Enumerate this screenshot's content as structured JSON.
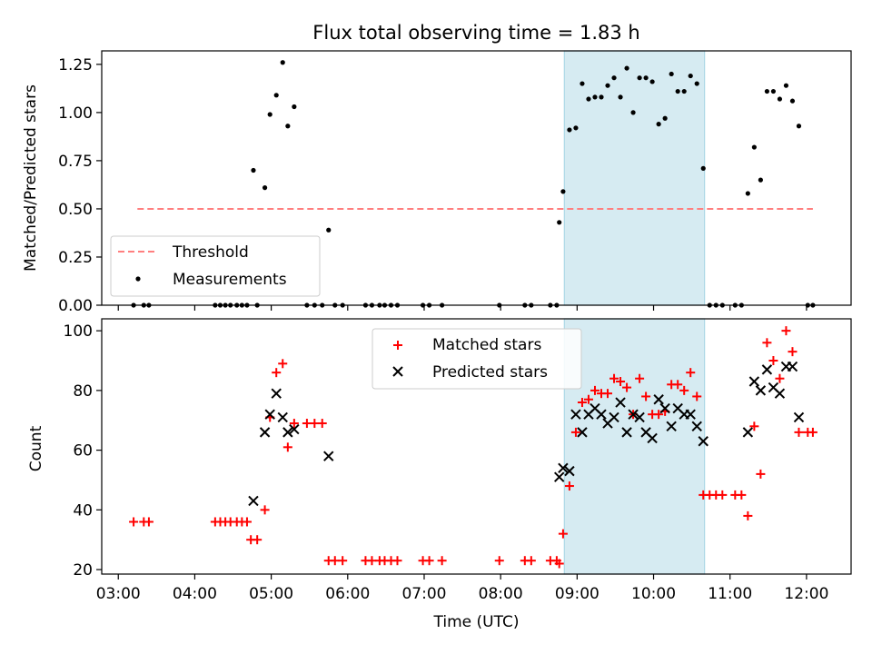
{
  "chart_data": [
    {
      "type": "scatter",
      "title": "Flux total observing time = 1.83 h",
      "xlabel": "",
      "ylabel": "Matched/Predicted stars",
      "xlim": [
        "02:47",
        "12:35"
      ],
      "ylim": [
        0,
        1.32
      ],
      "yticks": [
        0.0,
        0.25,
        0.5,
        0.75,
        1.0,
        1.25
      ],
      "ytick_labels": [
        "0.00",
        "0.25",
        "0.50",
        "0.75",
        "1.00",
        "1.25"
      ],
      "highlight_span": [
        "08:50",
        "10:40"
      ],
      "legend": {
        "placement": "lower-left",
        "entries": [
          "Threshold",
          "Measurements"
        ]
      },
      "threshold": {
        "name": "Threshold",
        "value": 0.5,
        "x_range": [
          "03:15",
          "12:05"
        ],
        "color": "#ff7f7f",
        "style": "dashed"
      },
      "series": [
        {
          "name": "Measurements",
          "color": "#000000",
          "points": [
            [
              "03:12",
              0
            ],
            [
              "03:20",
              0
            ],
            [
              "03:24",
              0
            ],
            [
              "04:16",
              0
            ],
            [
              "04:20",
              0
            ],
            [
              "04:24",
              0
            ],
            [
              "04:28",
              0
            ],
            [
              "04:33",
              0
            ],
            [
              "04:37",
              0
            ],
            [
              "04:41",
              0
            ],
            [
              "04:46",
              0.7
            ],
            [
              "04:49",
              0
            ],
            [
              "04:55",
              0.61
            ],
            [
              "04:59",
              0.99
            ],
            [
              "05:04",
              1.09
            ],
            [
              "05:09",
              1.26
            ],
            [
              "05:13",
              0.93
            ],
            [
              "05:18",
              1.03
            ],
            [
              "05:28",
              0
            ],
            [
              "05:34",
              0
            ],
            [
              "05:40",
              0
            ],
            [
              "05:45",
              0.39
            ],
            [
              "05:50",
              0
            ],
            [
              "05:56",
              0
            ],
            [
              "06:14",
              0
            ],
            [
              "06:19",
              0
            ],
            [
              "06:25",
              0
            ],
            [
              "06:29",
              0
            ],
            [
              "06:34",
              0
            ],
            [
              "06:39",
              0
            ],
            [
              "06:59",
              0
            ],
            [
              "07:04",
              0
            ],
            [
              "07:14",
              0
            ],
            [
              "07:59",
              0
            ],
            [
              "08:19",
              0
            ],
            [
              "08:24",
              0
            ],
            [
              "08:39",
              0
            ],
            [
              "08:44",
              0
            ],
            [
              "08:46",
              0.43
            ],
            [
              "08:49",
              0.59
            ],
            [
              "08:54",
              0.91
            ],
            [
              "08:59",
              0.92
            ],
            [
              "09:04",
              1.15
            ],
            [
              "09:09",
              1.07
            ],
            [
              "09:14",
              1.08
            ],
            [
              "09:19",
              1.08
            ],
            [
              "09:24",
              1.14
            ],
            [
              "09:29",
              1.18
            ],
            [
              "09:34",
              1.08
            ],
            [
              "09:39",
              1.23
            ],
            [
              "09:44",
              1.0
            ],
            [
              "09:49",
              1.18
            ],
            [
              "09:54",
              1.18
            ],
            [
              "09:59",
              1.16
            ],
            [
              "10:04",
              0.94
            ],
            [
              "10:09",
              0.97
            ],
            [
              "10:14",
              1.2
            ],
            [
              "10:19",
              1.11
            ],
            [
              "10:24",
              1.11
            ],
            [
              "10:29",
              1.19
            ],
            [
              "10:34",
              1.15
            ],
            [
              "10:39",
              0.71
            ],
            [
              "10:44",
              0
            ],
            [
              "10:49",
              0
            ],
            [
              "10:54",
              0
            ],
            [
              "11:04",
              0
            ],
            [
              "11:09",
              0
            ],
            [
              "11:14",
              0.58
            ],
            [
              "11:19",
              0.82
            ],
            [
              "11:24",
              0.65
            ],
            [
              "11:29",
              1.11
            ],
            [
              "11:34",
              1.11
            ],
            [
              "11:39",
              1.07
            ],
            [
              "11:44",
              1.14
            ],
            [
              "11:49",
              1.06
            ],
            [
              "11:54",
              0.93
            ],
            [
              "12:01",
              0
            ],
            [
              "12:05",
              0
            ]
          ]
        }
      ]
    },
    {
      "type": "scatter",
      "title": "",
      "xlabel": "Time (UTC)",
      "ylabel": "Count",
      "xlim": [
        "02:47",
        "12:35"
      ],
      "ylim": [
        18.5,
        104
      ],
      "yticks": [
        20,
        40,
        60,
        80,
        100
      ],
      "xticks": [
        "03:00",
        "04:00",
        "05:00",
        "06:00",
        "07:00",
        "08:00",
        "09:00",
        "10:00",
        "11:00",
        "12:00"
      ],
      "highlight_span": [
        "08:50",
        "10:40"
      ],
      "legend": {
        "placement": "top-center",
        "entries": [
          "Matched stars",
          "Predicted stars"
        ]
      },
      "series": [
        {
          "name": "Matched stars",
          "marker": "plus",
          "color": "#ff0000",
          "points": [
            [
              "03:12",
              36
            ],
            [
              "03:20",
              36
            ],
            [
              "03:24",
              36
            ],
            [
              "04:16",
              36
            ],
            [
              "04:20",
              36
            ],
            [
              "04:24",
              36
            ],
            [
              "04:28",
              36
            ],
            [
              "04:33",
              36
            ],
            [
              "04:37",
              36
            ],
            [
              "04:41",
              36
            ],
            [
              "04:44",
              30
            ],
            [
              "04:49",
              30
            ],
            [
              "04:55",
              40
            ],
            [
              "04:59",
              71
            ],
            [
              "05:04",
              86
            ],
            [
              "05:09",
              89
            ],
            [
              "05:13",
              61
            ],
            [
              "05:18",
              69
            ],
            [
              "05:28",
              69
            ],
            [
              "05:34",
              69
            ],
            [
              "05:40",
              69
            ],
            [
              "05:45",
              23
            ],
            [
              "05:50",
              23
            ],
            [
              "05:56",
              23
            ],
            [
              "06:14",
              23
            ],
            [
              "06:19",
              23
            ],
            [
              "06:25",
              23
            ],
            [
              "06:29",
              23
            ],
            [
              "06:34",
              23
            ],
            [
              "06:39",
              23
            ],
            [
              "06:59",
              23
            ],
            [
              "07:04",
              23
            ],
            [
              "07:14",
              23
            ],
            [
              "07:59",
              23
            ],
            [
              "08:19",
              23
            ],
            [
              "08:24",
              23
            ],
            [
              "08:39",
              23
            ],
            [
              "08:44",
              23
            ],
            [
              "08:46",
              22
            ],
            [
              "08:49",
              32
            ],
            [
              "08:54",
              48
            ],
            [
              "08:59",
              66
            ],
            [
              "09:04",
              76
            ],
            [
              "09:09",
              77
            ],
            [
              "09:14",
              80
            ],
            [
              "09:19",
              79
            ],
            [
              "09:24",
              79
            ],
            [
              "09:29",
              84
            ],
            [
              "09:34",
              83
            ],
            [
              "09:39",
              81
            ],
            [
              "09:44",
              72
            ],
            [
              "09:49",
              84
            ],
            [
              "09:54",
              78
            ],
            [
              "09:59",
              72
            ],
            [
              "10:04",
              72
            ],
            [
              "10:09",
              73
            ],
            [
              "10:14",
              82
            ],
            [
              "10:19",
              82
            ],
            [
              "10:24",
              80
            ],
            [
              "10:29",
              86
            ],
            [
              "10:34",
              78
            ],
            [
              "10:39",
              45
            ],
            [
              "10:44",
              45
            ],
            [
              "10:49",
              45
            ],
            [
              "10:54",
              45
            ],
            [
              "11:04",
              45
            ],
            [
              "11:09",
              45
            ],
            [
              "11:14",
              38
            ],
            [
              "11:19",
              68
            ],
            [
              "11:24",
              52
            ],
            [
              "11:29",
              96
            ],
            [
              "11:34",
              90
            ],
            [
              "11:39",
              84
            ],
            [
              "11:44",
              100
            ],
            [
              "11:49",
              93
            ],
            [
              "11:54",
              66
            ],
            [
              "12:01",
              66
            ],
            [
              "12:05",
              66
            ]
          ]
        },
        {
          "name": "Predicted stars",
          "marker": "cross",
          "color": "#000000",
          "points": [
            [
              "04:46",
              43
            ],
            [
              "04:55",
              66
            ],
            [
              "04:59",
              72
            ],
            [
              "05:04",
              79
            ],
            [
              "05:09",
              71
            ],
            [
              "05:13",
              66
            ],
            [
              "05:18",
              67
            ],
            [
              "05:45",
              58
            ],
            [
              "08:46",
              51
            ],
            [
              "08:49",
              54
            ],
            [
              "08:54",
              53
            ],
            [
              "08:59",
              72
            ],
            [
              "09:04",
              66
            ],
            [
              "09:09",
              72
            ],
            [
              "09:14",
              74
            ],
            [
              "09:19",
              72
            ],
            [
              "09:24",
              69
            ],
            [
              "09:29",
              71
            ],
            [
              "09:34",
              76
            ],
            [
              "09:39",
              66
            ],
            [
              "09:44",
              72
            ],
            [
              "09:49",
              71
            ],
            [
              "09:54",
              66
            ],
            [
              "09:59",
              64
            ],
            [
              "10:04",
              77
            ],
            [
              "10:09",
              74
            ],
            [
              "10:14",
              68
            ],
            [
              "10:19",
              74
            ],
            [
              "10:24",
              72
            ],
            [
              "10:29",
              72
            ],
            [
              "10:34",
              68
            ],
            [
              "10:39",
              63
            ],
            [
              "11:14",
              66
            ],
            [
              "11:19",
              83
            ],
            [
              "11:24",
              80
            ],
            [
              "11:29",
              87
            ],
            [
              "11:34",
              81
            ],
            [
              "11:39",
              79
            ],
            [
              "11:44",
              88
            ],
            [
              "11:49",
              88
            ],
            [
              "11:54",
              71
            ]
          ]
        }
      ]
    }
  ],
  "colors": {
    "highlight": "#add8e6",
    "threshold": "#ff7f7f"
  }
}
